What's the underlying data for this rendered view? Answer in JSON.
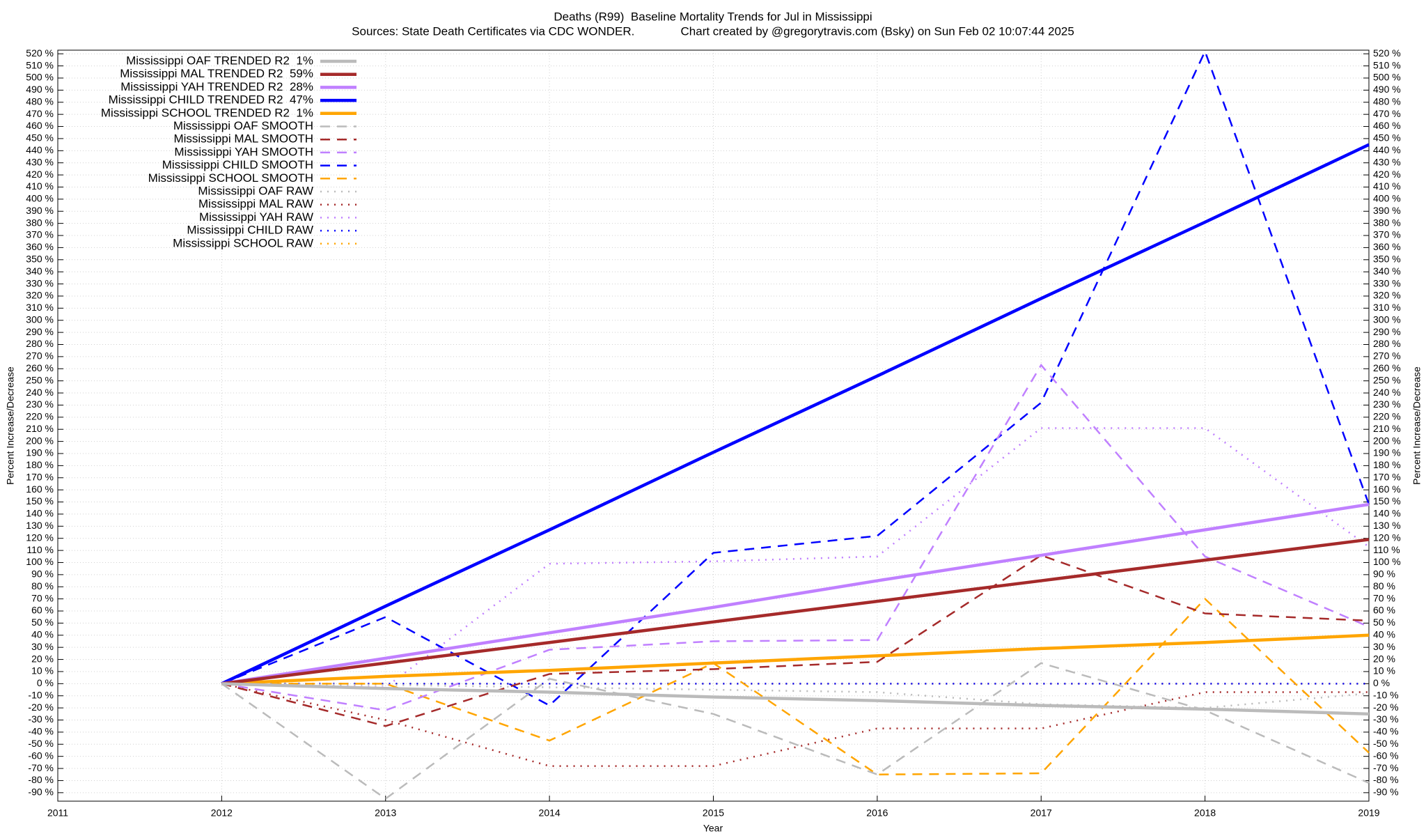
{
  "chart_data": {
    "type": "line",
    "title": "Deaths (R99)  Baseline Mortality Trends for Jul in Mississippi",
    "subtitle": "Sources: State Death Certificates via CDC WONDER.              Chart created by @gregorytravis.com (Bsky) on Sun Feb 02 10:07:44 2025",
    "xlabel": "Year",
    "ylabel": "Percent Increase/Decrease",
    "y2label": "Percent Increase/Decrease",
    "x": [
      2012,
      2013,
      2014,
      2015,
      2016,
      2017,
      2018,
      2019
    ],
    "xlim": [
      2011,
      2019
    ],
    "xticks": [
      2011,
      2012,
      2013,
      2014,
      2015,
      2016,
      2017,
      2018,
      2019
    ],
    "ylim": [
      -97,
      523
    ],
    "yticks": [
      {
        "value": -90,
        "label": "-90 %"
      },
      {
        "value": -80,
        "label": "-80 %"
      },
      {
        "value": -70,
        "label": "-70 %"
      },
      {
        "value": -60,
        "label": "-60 %"
      },
      {
        "value": -50,
        "label": "-50 %"
      },
      {
        "value": -40,
        "label": "-40 %"
      },
      {
        "value": -30,
        "label": "-30 %"
      },
      {
        "value": -20,
        "label": "-20 %"
      },
      {
        "value": -10,
        "label": "-10 %"
      },
      {
        "value": 0,
        "label": "0 %"
      },
      {
        "value": 10,
        "label": "10 %"
      },
      {
        "value": 20,
        "label": "20 %"
      },
      {
        "value": 30,
        "label": "30 %"
      },
      {
        "value": 40,
        "label": "40 %"
      },
      {
        "value": 50,
        "label": "50 %"
      },
      {
        "value": 60,
        "label": "60 %"
      },
      {
        "value": 70,
        "label": "70 %"
      },
      {
        "value": 80,
        "label": "80 %"
      },
      {
        "value": 90,
        "label": "90 %"
      },
      {
        "value": 100,
        "label": "100 %"
      },
      {
        "value": 110,
        "label": "110 %"
      },
      {
        "value": 120,
        "label": "120 %"
      },
      {
        "value": 130,
        "label": "130 %"
      },
      {
        "value": 140,
        "label": "140 %"
      },
      {
        "value": 150,
        "label": "150 %"
      },
      {
        "value": 160,
        "label": "160 %"
      },
      {
        "value": 170,
        "label": "170 %"
      },
      {
        "value": 180,
        "label": "180 %"
      },
      {
        "value": 190,
        "label": "190 %"
      },
      {
        "value": 200,
        "label": "200 %"
      },
      {
        "value": 210,
        "label": "210 %"
      },
      {
        "value": 220,
        "label": "220 %"
      },
      {
        "value": 230,
        "label": "230 %"
      },
      {
        "value": 240,
        "label": "240 %"
      },
      {
        "value": 250,
        "label": "250 %"
      },
      {
        "value": 260,
        "label": "260 %"
      },
      {
        "value": 270,
        "label": "270 %"
      },
      {
        "value": 280,
        "label": "280 %"
      },
      {
        "value": 290,
        "label": "290 %"
      },
      {
        "value": 300,
        "label": "300 %"
      },
      {
        "value": 310,
        "label": "310 %"
      },
      {
        "value": 320,
        "label": "320 %"
      },
      {
        "value": 330,
        "label": "330 %"
      },
      {
        "value": 340,
        "label": "340 %"
      },
      {
        "value": 350,
        "label": "350 %"
      },
      {
        "value": 360,
        "label": "360 %"
      },
      {
        "value": 370,
        "label": "370 %"
      },
      {
        "value": 380,
        "label": "380 %"
      },
      {
        "value": 390,
        "label": "390 %"
      },
      {
        "value": 400,
        "label": "400 %"
      },
      {
        "value": 410,
        "label": "410 %"
      },
      {
        "value": 420,
        "label": "420 %"
      },
      {
        "value": 430,
        "label": "430 %"
      },
      {
        "value": 440,
        "label": "440 %"
      },
      {
        "value": 450,
        "label": "450 %"
      },
      {
        "value": 460,
        "label": "460 %"
      },
      {
        "value": 470,
        "label": "470 %"
      },
      {
        "value": 480,
        "label": "480 %"
      },
      {
        "value": 490,
        "label": "490 %"
      },
      {
        "value": 500,
        "label": "500 %"
      },
      {
        "value": 510,
        "label": "510 %"
      },
      {
        "value": 520,
        "label": "520 %"
      }
    ],
    "grid": true,
    "legend": "top-left",
    "series": [
      {
        "name": "Mississippi OAF TRENDED R2  1%",
        "color": "#bbbbbb",
        "style": "solid",
        "values": [
          0,
          -4,
          -7,
          -11,
          -14,
          -18,
          -21,
          -25
        ]
      },
      {
        "name": "Mississippi MAL TRENDED R2  59%",
        "color": "#a52a2a",
        "style": "solid",
        "values": [
          0,
          17,
          34,
          51,
          68,
          85,
          102,
          119
        ]
      },
      {
        "name": "Mississippi YAH TRENDED R2  28%",
        "color": "#c080ff",
        "style": "solid",
        "values": [
          0,
          21,
          42,
          63,
          85,
          106,
          127,
          148
        ]
      },
      {
        "name": "Mississippi CHILD TRENDED R2  47%",
        "color": "#0000ff",
        "style": "solid",
        "values": [
          0,
          64,
          127,
          191,
          254,
          318,
          381,
          445
        ]
      },
      {
        "name": "Mississippi SCHOOL TRENDED R2  1%",
        "color": "#ffa500",
        "style": "solid",
        "values": [
          0,
          6,
          11,
          17,
          23,
          29,
          34,
          40
        ]
      },
      {
        "name": "Mississippi OAF SMOOTH",
        "color": "#bbbbbb",
        "style": "dash",
        "values": [
          0,
          -95,
          4,
          -25,
          -75,
          17,
          -22,
          -82
        ]
      },
      {
        "name": "Mississippi MAL SMOOTH",
        "color": "#a52a2a",
        "style": "dash",
        "values": [
          0,
          -35,
          8,
          12,
          18,
          106,
          58,
          52
        ]
      },
      {
        "name": "Mississippi YAH SMOOTH",
        "color": "#c080ff",
        "style": "dash",
        "values": [
          0,
          -22,
          28,
          35,
          36,
          263,
          105,
          47
        ]
      },
      {
        "name": "Mississippi CHILD SMOOTH",
        "color": "#0000ff",
        "style": "dash",
        "values": [
          0,
          55,
          -18,
          108,
          122,
          232,
          522,
          148
        ]
      },
      {
        "name": "Mississippi SCHOOL SMOOTH",
        "color": "#ffa500",
        "style": "dash",
        "values": [
          0,
          0,
          -47,
          17,
          -75,
          -74,
          70,
          -57
        ]
      },
      {
        "name": "Mississippi OAF RAW",
        "color": "#bbbbbb",
        "style": "dot",
        "values": [
          0,
          -1,
          -3,
          -5,
          -7,
          -17,
          -20,
          -8
        ]
      },
      {
        "name": "Mississippi MAL RAW",
        "color": "#a52a2a",
        "style": "dot",
        "values": [
          0,
          -30,
          -68,
          -68,
          -37,
          -37,
          -7,
          -7
        ]
      },
      {
        "name": "Mississippi YAH RAW",
        "color": "#c080ff",
        "style": "dot",
        "values": [
          0,
          -3,
          99,
          101,
          105,
          211,
          211,
          113
        ]
      },
      {
        "name": "Mississippi CHILD RAW",
        "color": "#0000ff",
        "style": "dot",
        "values": [
          0,
          0,
          0,
          0,
          0,
          0,
          0,
          0
        ]
      },
      {
        "name": "Mississippi SCHOOL RAW",
        "color": "#ffa500",
        "style": "dot",
        "values": [
          0,
          0,
          0,
          0,
          0,
          0,
          0,
          0
        ]
      }
    ]
  }
}
